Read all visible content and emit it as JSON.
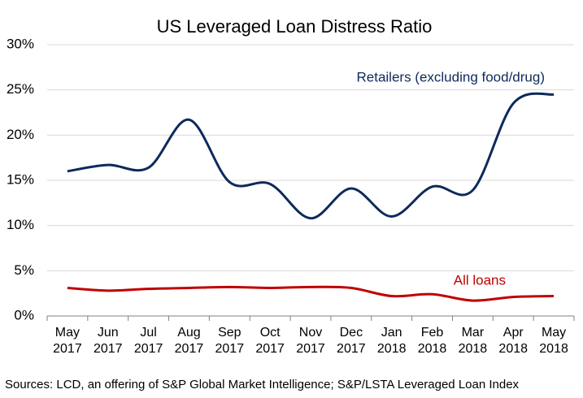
{
  "chart_data": {
    "type": "line",
    "title": "US Leveraged Loan Distress Ratio",
    "source": "Sources: LCD, an offering of S&P Global Market Intelligence;  S&P/LSTA  Leveraged Loan Index",
    "categories": [
      "May 2017",
      "Jun 2017",
      "Jul 2017",
      "Aug 2017",
      "Sep 2017",
      "Oct 2017",
      "Nov 2017",
      "Dec 2017",
      "Jan 2018",
      "Feb 2018",
      "Mar 2018",
      "Apr 2018",
      "May 2018"
    ],
    "series": [
      {
        "name": "Retailers (excluding food/drug)",
        "color": "#0d2a5c",
        "values": [
          16.0,
          16.7,
          16.4,
          21.7,
          14.8,
          14.6,
          10.8,
          14.1,
          11.0,
          14.3,
          13.9,
          23.5,
          24.5
        ]
      },
      {
        "name": "All loans",
        "color": "#c00000",
        "values": [
          3.1,
          2.8,
          3.0,
          3.1,
          3.2,
          3.1,
          3.2,
          3.1,
          2.2,
          2.4,
          1.7,
          2.1,
          2.2
        ]
      }
    ],
    "ylim": [
      0,
      30
    ],
    "yticks": [
      {
        "value": 0,
        "label": "0%"
      },
      {
        "value": 5,
        "label": "5%"
      },
      {
        "value": 10,
        "label": "10%"
      },
      {
        "value": 15,
        "label": "15%"
      },
      {
        "value": 20,
        "label": "20%"
      },
      {
        "value": 25,
        "label": "25%"
      },
      {
        "value": 30,
        "label": "30%"
      }
    ],
    "grid": true
  }
}
